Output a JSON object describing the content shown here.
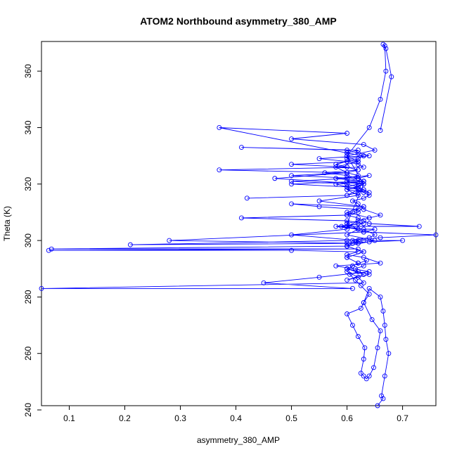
{
  "chart_data": {
    "type": "line",
    "title": "ATOM2 Northbound asymmetry_380_AMP",
    "xlabel": "asymmetry_380_AMP",
    "ylabel": "Theta (K)",
    "xlim": [
      0.05,
      0.76
    ],
    "ylim": [
      241.5,
      370.5
    ],
    "xticks": [
      0.1,
      0.2,
      0.3,
      0.4,
      0.5,
      0.6,
      0.7
    ],
    "yticks": [
      240,
      260,
      280,
      300,
      320,
      340,
      360
    ],
    "xtick_labels": [
      "0.1",
      "0.2",
      "0.3",
      "0.4",
      "0.5",
      "0.6",
      "0.7"
    ],
    "ytick_labels": [
      "240",
      "260",
      "280",
      "300",
      "320",
      "340",
      "360"
    ],
    "grid": false,
    "series_color": "#0000ff",
    "markers": "open-circle",
    "series": [
      {
        "x": [
          0.655,
          0.665,
          0.662,
          0.668,
          0.675,
          0.67,
          0.668,
          0.665,
          0.66,
          0.64,
          0.63,
          0.645,
          0.66,
          0.655,
          0.648,
          0.64,
          0.635,
          0.63,
          0.625,
          0.63,
          0.632,
          0.62,
          0.61,
          0.6,
          0.625,
          0.63,
          0.64,
          0.625,
          0.615,
          0.605,
          0.62,
          0.615,
          0.63,
          0.635,
          0.61,
          0.6,
          0.62,
          0.63,
          0.05,
          0.61,
          0.45,
          0.55,
          0.64,
          0.58,
          0.66,
          0.63,
          0.6,
          0.62,
          0.5,
          0.063,
          0.62,
          0.068,
          0.6,
          0.61,
          0.63,
          0.7,
          0.64,
          0.6,
          0.62,
          0.61,
          0.66,
          0.76,
          0.63,
          0.28,
          0.62,
          0.21,
          0.6,
          0.64,
          0.65,
          0.63,
          0.59,
          0.62,
          0.6,
          0.73,
          0.64,
          0.63,
          0.62,
          0.6,
          0.61,
          0.62,
          0.55,
          0.5,
          0.63,
          0.62,
          0.6,
          0.41,
          0.6,
          0.63,
          0.58,
          0.62,
          0.65,
          0.63,
          0.6,
          0.62,
          0.64,
          0.66,
          0.63,
          0.62,
          0.61,
          0.63,
          0.64,
          0.63,
          0.62,
          0.6,
          0.5,
          0.63,
          0.62,
          0.64,
          0.58,
          0.63,
          0.62,
          0.6,
          0.63,
          0.62,
          0.6,
          0.42,
          0.6,
          0.62,
          0.58,
          0.63,
          0.62,
          0.6,
          0.56,
          0.62,
          0.6,
          0.5,
          0.62,
          0.6,
          0.64,
          0.62,
          0.6,
          0.41,
          0.62,
          0.6,
          0.63,
          0.62,
          0.6,
          0.58,
          0.6,
          0.62,
          0.6,
          0.5,
          0.62,
          0.6,
          0.63,
          0.62,
          0.6,
          0.64,
          0.63,
          0.62,
          0.6,
          0.5,
          0.6,
          0.62,
          0.6,
          0.37,
          0.63,
          0.62,
          0.6,
          0.55,
          0.63,
          0.6,
          0.37,
          0.6,
          0.5,
          0.63,
          0.65,
          0.6,
          0.62,
          0.58,
          0.6,
          0.47,
          0.63,
          0.6,
          0.62,
          0.55,
          0.63,
          0.6,
          0.64,
          0.6,
          0.6,
          0.5,
          0.62,
          0.6,
          0.63,
          0.6,
          0.62,
          0.6,
          0.63,
          0.6,
          0.64,
          0.6,
          0.62,
          0.6,
          0.63,
          0.6,
          0.65,
          0.6,
          0.62,
          0.6,
          0.63,
          0.6,
          0.64,
          0.66,
          0.67,
          0.668,
          0.665,
          0.67,
          0.68,
          0.66
        ],
        "y": [
          241.5,
          244,
          245,
          252,
          260,
          265,
          270,
          275,
          280,
          283,
          278,
          272,
          268,
          262,
          255,
          252,
          251,
          252,
          253,
          258,
          262,
          266,
          270,
          274,
          276,
          278,
          281,
          284,
          286,
          288,
          289,
          290,
          291,
          293,
          291,
          289,
          287,
          285,
          283,
          283,
          285,
          287,
          289,
          291,
          292,
          294,
          295,
          296,
          296.5,
          296.5,
          297,
          297,
          298,
          299,
          300,
          300,
          299.5,
          299,
          299,
          300,
          301,
          302,
          303,
          300,
          299,
          298.5,
          300,
          301,
          302,
          304,
          305,
          306,
          305,
          305,
          306,
          307,
          308,
          309,
          310,
          311,
          312,
          313,
          312,
          310,
          309,
          308,
          307,
          306,
          305,
          304,
          304,
          303,
          305,
          307,
          308,
          309,
          311,
          313,
          314,
          315,
          316,
          317,
          318,
          319,
          320,
          321,
          322,
          323,
          322,
          321,
          320,
          319,
          318,
          317,
          316,
          315,
          316,
          318,
          320,
          321,
          322,
          323,
          324,
          325,
          326,
          327,
          328,
          329,
          330,
          331,
          332,
          333,
          332,
          331,
          330,
          329,
          328,
          327,
          326,
          325,
          324,
          323,
          322,
          321,
          320,
          319,
          318,
          317,
          318,
          319,
          320,
          321,
          322,
          323,
          324,
          325,
          326,
          327,
          328,
          329,
          330,
          331,
          340,
          338,
          336,
          334,
          332,
          330,
          328,
          326,
          324,
          322,
          320,
          318,
          316,
          314,
          312,
          310,
          308,
          306,
          304,
          302,
          300,
          298,
          296,
          294,
          292,
          290,
          288,
          286,
          288,
          290,
          292,
          294,
          296,
          298,
          300,
          302,
          304,
          306,
          320,
          330,
          340,
          350,
          360,
          369,
          369.5,
          368,
          358,
          339
        ]
      }
    ]
  }
}
